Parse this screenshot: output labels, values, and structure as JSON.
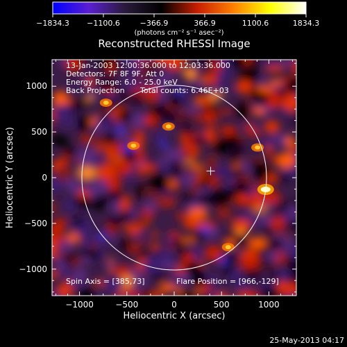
{
  "chart_data": {
    "type": "heatmap",
    "title": "Reconstructed RHESSI Image",
    "xlabel": "Heliocentric X (arcsec)",
    "ylabel": "Heliocentric Y (arcsec)",
    "xlim": [
      -1290,
      1290
    ],
    "ylim": [
      -1290,
      1290
    ],
    "x_ticks": [
      -1000,
      -500,
      0,
      500,
      1000
    ],
    "x_tick_labels": [
      "−1000",
      "−500",
      "0",
      "500",
      "1000"
    ],
    "y_ticks": [
      -1000,
      -500,
      0,
      500,
      1000
    ],
    "y_tick_labels": [
      "−1000",
      "−500",
      "0",
      "500",
      "1000"
    ],
    "colorbar": {
      "ticks": [
        -1834.3,
        -1100.6,
        -366.9,
        366.9,
        1100.6,
        1834.3
      ],
      "tick_labels": [
        "−1834.3",
        "−1100.6",
        "−366.9",
        "366.9",
        "1100.6",
        "1834.3"
      ],
      "units": "(photons cm⁻² s⁻¹ asec⁻²)",
      "colors": [
        "#0000ff",
        "#5a1fd0",
        "#2a1a3a",
        "#000000",
        "#c81e00",
        "#ff8000",
        "#ffff00",
        "#ffffff"
      ]
    },
    "annotations": {
      "time": "13-Jan-2003 12:00:36.000 to 12:03:36.000",
      "detectors": "Detectors: 7F 8F 9F, Att 0",
      "energy": "Energy Range: 6.0 - 25.0 keV",
      "method": "Back Projection",
      "counts": "Total counts: 6.46E+03",
      "spin_axis": "Spin Axis = [385,73]",
      "flare_position": "Flare Position = [966,-129]"
    },
    "solar_disk_radius_arcsec": 975,
    "spin_axis": [
      385,
      73
    ],
    "flare_position": [
      966,
      -129
    ],
    "bright_sources": [
      {
        "x": 966,
        "y": -129,
        "value": 1834.3
      },
      {
        "x": -720,
        "y": 820,
        "value": 1100.6
      },
      {
        "x": -430,
        "y": 350,
        "value": 1100.6
      },
      {
        "x": -60,
        "y": 560,
        "value": 1000
      },
      {
        "x": 570,
        "y": -760,
        "value": 900
      },
      {
        "x": 880,
        "y": 330,
        "value": 1100.6
      }
    ],
    "date_stamp": "25-May-2013 04:17"
  }
}
